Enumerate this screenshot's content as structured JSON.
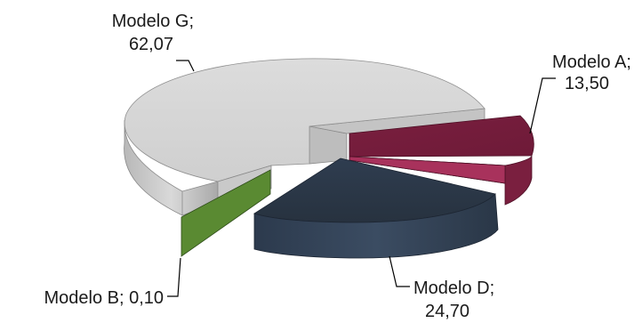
{
  "chart_data": {
    "type": "pie",
    "style": "3d-exploded",
    "slices": [
      {
        "name": "Modelo G",
        "value": 62.07,
        "value_label": "62,07",
        "color": "#d3d3d3"
      },
      {
        "name": "Modelo A",
        "value": 13.5,
        "value_label": "13,50",
        "color": "#8e2a4f"
      },
      {
        "name": "Modelo D",
        "value": 24.7,
        "value_label": "24,70",
        "color": "#2c3a4d"
      },
      {
        "name": "Modelo B",
        "value": 0.1,
        "value_label": "0,10",
        "color": "#5a8a32"
      }
    ],
    "labels": {
      "g_line1": "Modelo G;",
      "g_line2": "62,07",
      "a_line1": "Modelo A;",
      "a_line2": "13,50",
      "d_line1": "Modelo D;",
      "d_line2": "24,70",
      "b_line1": "Modelo B; 0,10"
    }
  }
}
